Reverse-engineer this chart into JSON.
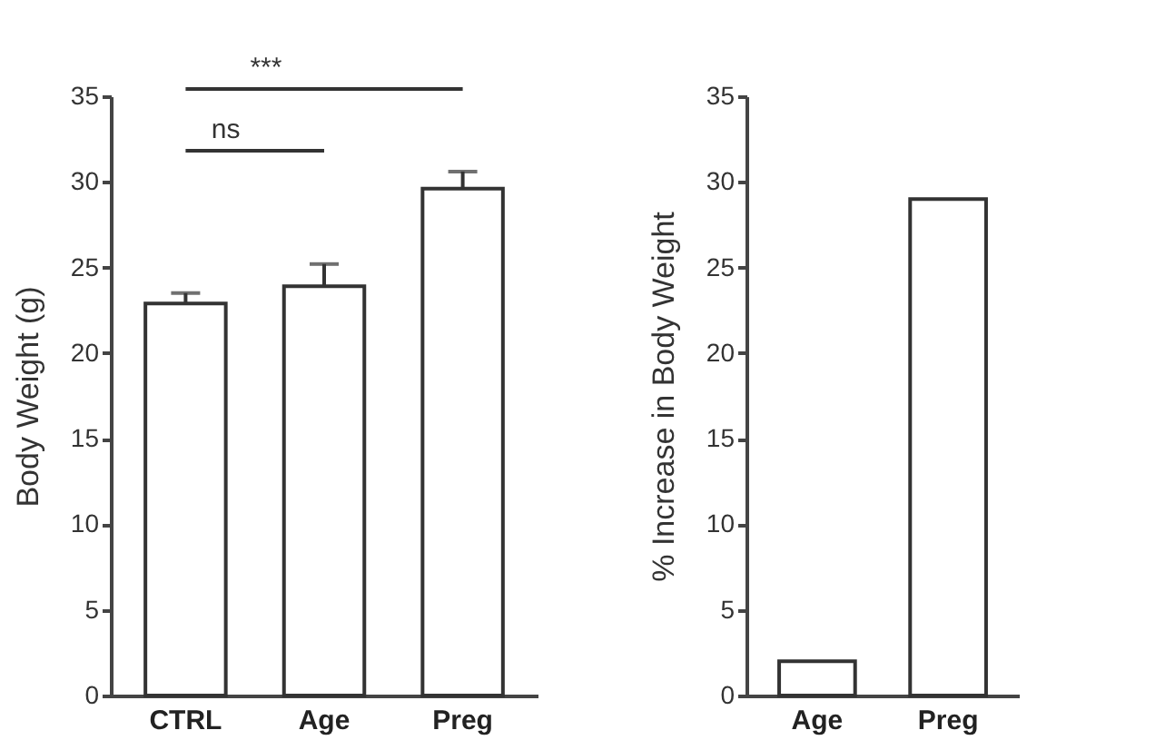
{
  "chart_data": [
    {
      "type": "bar",
      "ylabel": "Body Weight (g)",
      "categories": [
        "CTRL",
        "Age",
        "Preg"
      ],
      "values": [
        22.9,
        23.9,
        29.6
      ],
      "errors": [
        0.6,
        1.3,
        1.0
      ],
      "colors": [
        "#ffffff",
        "#ffffff",
        "#ffffff"
      ],
      "ylim": [
        0,
        35
      ],
      "yticks": [
        0,
        5,
        10,
        15,
        20,
        25,
        30,
        35
      ],
      "grid": false,
      "annotations": [
        "ns",
        "***"
      ]
    },
    {
      "type": "bar",
      "ylabel": "% Increase in Body Weight",
      "categories": [
        "Age",
        "Preg"
      ],
      "values": [
        2,
        29
      ],
      "colors": [
        "#ffffff",
        "#ffffff"
      ],
      "ylim": [
        0,
        35
      ],
      "yticks": [
        0,
        5,
        10,
        15,
        20,
        25,
        30,
        35
      ],
      "grid": false
    }
  ]
}
